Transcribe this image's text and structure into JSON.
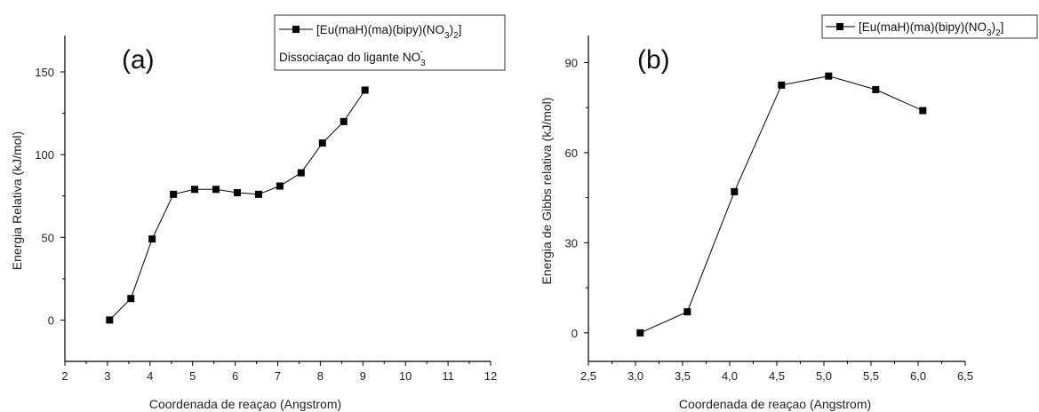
{
  "chart_data": [
    {
      "type": "line",
      "panel_label": "(a)",
      "xlabel": "Coordenada de reaçao (Angstrom)",
      "ylabel": "Energia Relativa (kJ/mol)",
      "xlim": [
        2,
        12
      ],
      "ylim": [
        -25,
        172
      ],
      "x_ticks": [
        2,
        3,
        4,
        5,
        6,
        7,
        8,
        9,
        10,
        11,
        12
      ],
      "x_tick_labels": [
        "2",
        "3",
        "4",
        "5",
        "6",
        "7",
        "8",
        "9",
        "10",
        "11",
        "12"
      ],
      "y_ticks": [
        0,
        50,
        100,
        150
      ],
      "y_tick_labels": [
        "0",
        "50",
        "100",
        "150"
      ],
      "legend": {
        "placement": "top-right",
        "entry_main": "[Eu(maH)(ma)(bipy)(NO",
        "entry_sub": "3",
        "entry_close": ")",
        "entry_sub2": "2",
        "entry_end": "]",
        "note_main": "Dissociaçao do ligante NO",
        "note_sub": "3",
        "note_sup": "-"
      },
      "series": [
        {
          "name": "[Eu(maH)(ma)(bipy)(NO3)2]",
          "x": [
            3.05,
            3.55,
            4.05,
            4.55,
            5.05,
            5.55,
            6.05,
            6.55,
            7.05,
            7.55,
            8.05,
            8.55,
            9.05
          ],
          "y": [
            0,
            13,
            49,
            76,
            79,
            79,
            77,
            76,
            81,
            89,
            107,
            120,
            139
          ]
        }
      ]
    },
    {
      "type": "line",
      "panel_label": "(b)",
      "xlabel": "Coordenada de reaçao (Angstrom)",
      "ylabel": "Energia de Gibbs relativa (kJ/mol)",
      "xlim": [
        2.5,
        6.5
      ],
      "ylim": [
        -9.5,
        99
      ],
      "x_ticks": [
        2.5,
        3.0,
        3.5,
        4.0,
        4.5,
        5.0,
        5.5,
        6.0,
        6.5
      ],
      "x_tick_labels": [
        "2,5",
        "3,0",
        "3,5",
        "4,0",
        "4,5",
        "5,0",
        "5,5",
        "6,0",
        "6,5"
      ],
      "y_ticks": [
        0,
        30,
        60,
        90
      ],
      "y_tick_labels": [
        "0",
        "30",
        "60",
        "90"
      ],
      "legend": {
        "placement": "top-right",
        "entry_main": "[Eu(maH)(ma)(bipy)(NO",
        "entry_sub": "3",
        "entry_close": ")",
        "entry_sub2": "2",
        "entry_end": "]"
      },
      "series": [
        {
          "name": "[Eu(maH)(ma)(bipy)(NO3)2]",
          "x": [
            3.05,
            3.55,
            4.05,
            4.55,
            5.05,
            5.55,
            6.05
          ],
          "y": [
            0,
            7,
            47,
            82.5,
            85.5,
            81,
            74
          ]
        }
      ]
    }
  ]
}
